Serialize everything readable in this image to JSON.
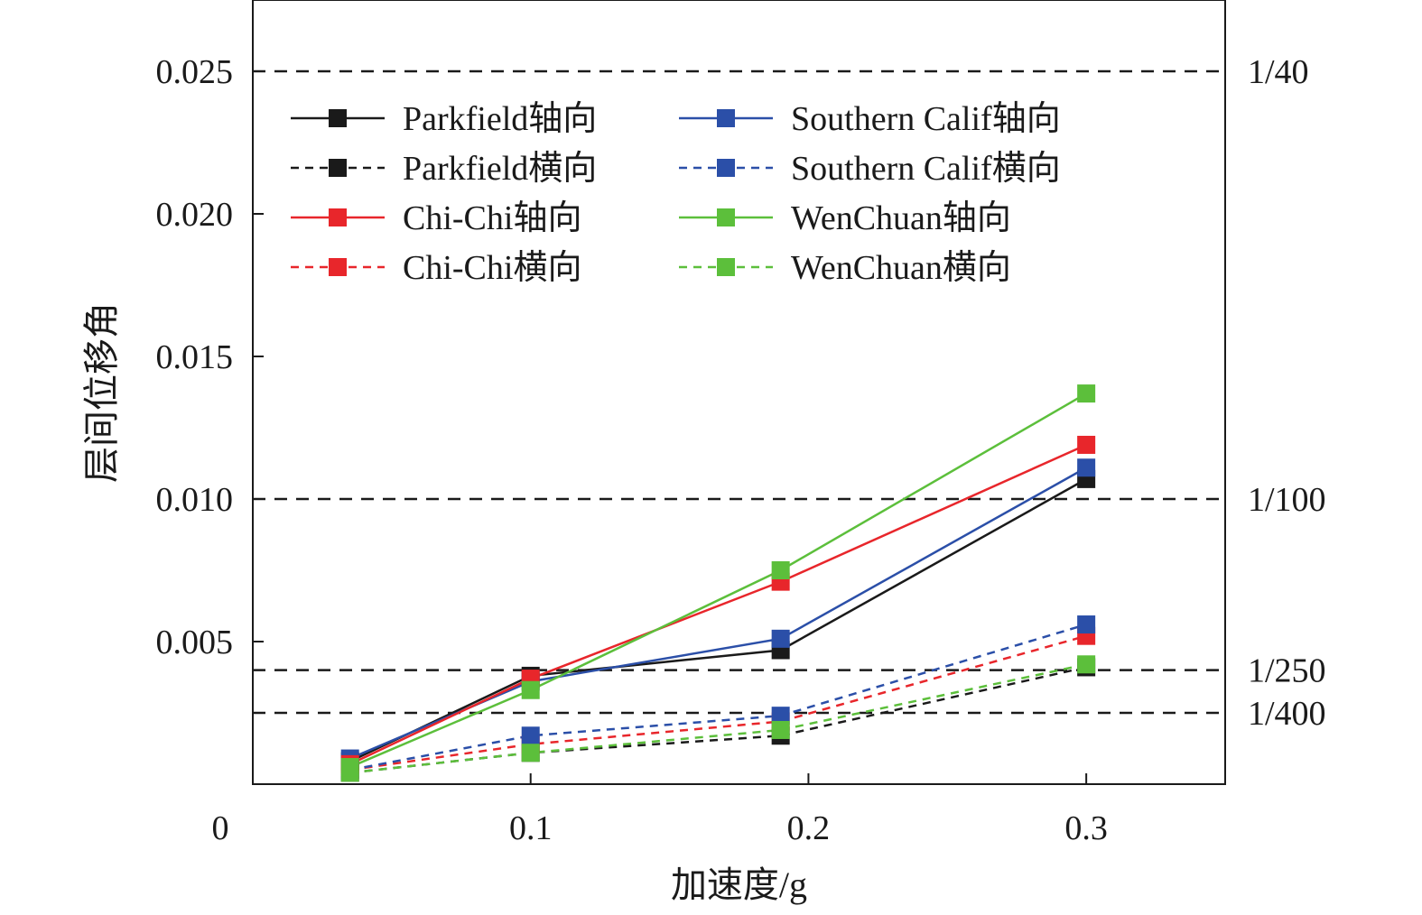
{
  "chart_data": {
    "type": "line",
    "xlabel": "加速度/g",
    "ylabel": "层间位移角",
    "xlim": [
      0,
      0.35
    ],
    "ylim": [
      0,
      0.0275
    ],
    "x_ticks": [
      {
        "value": 0,
        "label": "0"
      },
      {
        "value": 0.1,
        "label": "0.1"
      },
      {
        "value": 0.2,
        "label": "0.2"
      },
      {
        "value": 0.3,
        "label": "0.3"
      }
    ],
    "y_ticks": [
      {
        "value": 0.005,
        "label": "0.005"
      },
      {
        "value": 0.01,
        "label": "0.010"
      },
      {
        "value": 0.015,
        "label": "0.015"
      },
      {
        "value": 0.02,
        "label": "0.020"
      },
      {
        "value": 0.025,
        "label": "0.025"
      }
    ],
    "reference_lines": [
      {
        "value": 0.025,
        "label": "1/40"
      },
      {
        "value": 0.01,
        "label": "1/100"
      },
      {
        "value": 0.004,
        "label": "1/250"
      },
      {
        "value": 0.0025,
        "label": "1/400"
      }
    ],
    "x": [
      0.035,
      0.1,
      0.19,
      0.3
    ],
    "series": [
      {
        "name": "Parkfield轴向",
        "color": "#1a1a1a",
        "dash": false,
        "values": [
          0.0008,
          0.0038,
          0.0047,
          0.0107
        ]
      },
      {
        "name": "Parkfield横向",
        "color": "#1a1a1a",
        "dash": true,
        "values": [
          0.0004,
          0.0011,
          0.0017,
          0.0041
        ]
      },
      {
        "name": "Chi-Chi轴向",
        "color": "#e8262b",
        "dash": false,
        "values": [
          0.0007,
          0.0037,
          0.0071,
          0.0119
        ]
      },
      {
        "name": "Chi-Chi横向",
        "color": "#e8262b",
        "dash": true,
        "values": [
          0.0005,
          0.0014,
          0.0022,
          0.0052
        ]
      },
      {
        "name": "Southern Calif轴向",
        "color": "#2b4fa8",
        "dash": false,
        "values": [
          0.0009,
          0.0036,
          0.0051,
          0.0111
        ]
      },
      {
        "name": "Southern Calif横向",
        "color": "#2b4fa8",
        "dash": true,
        "values": [
          0.0005,
          0.0017,
          0.0024,
          0.0056
        ]
      },
      {
        "name": "WenChuan轴向",
        "color": "#5cbf3b",
        "dash": false,
        "values": [
          0.0006,
          0.0033,
          0.0075,
          0.0137
        ]
      },
      {
        "name": "WenChuan横向",
        "color": "#5cbf3b",
        "dash": true,
        "values": [
          0.0004,
          0.0011,
          0.0019,
          0.0042
        ]
      }
    ],
    "legend_position": "top-left",
    "grid": false
  }
}
